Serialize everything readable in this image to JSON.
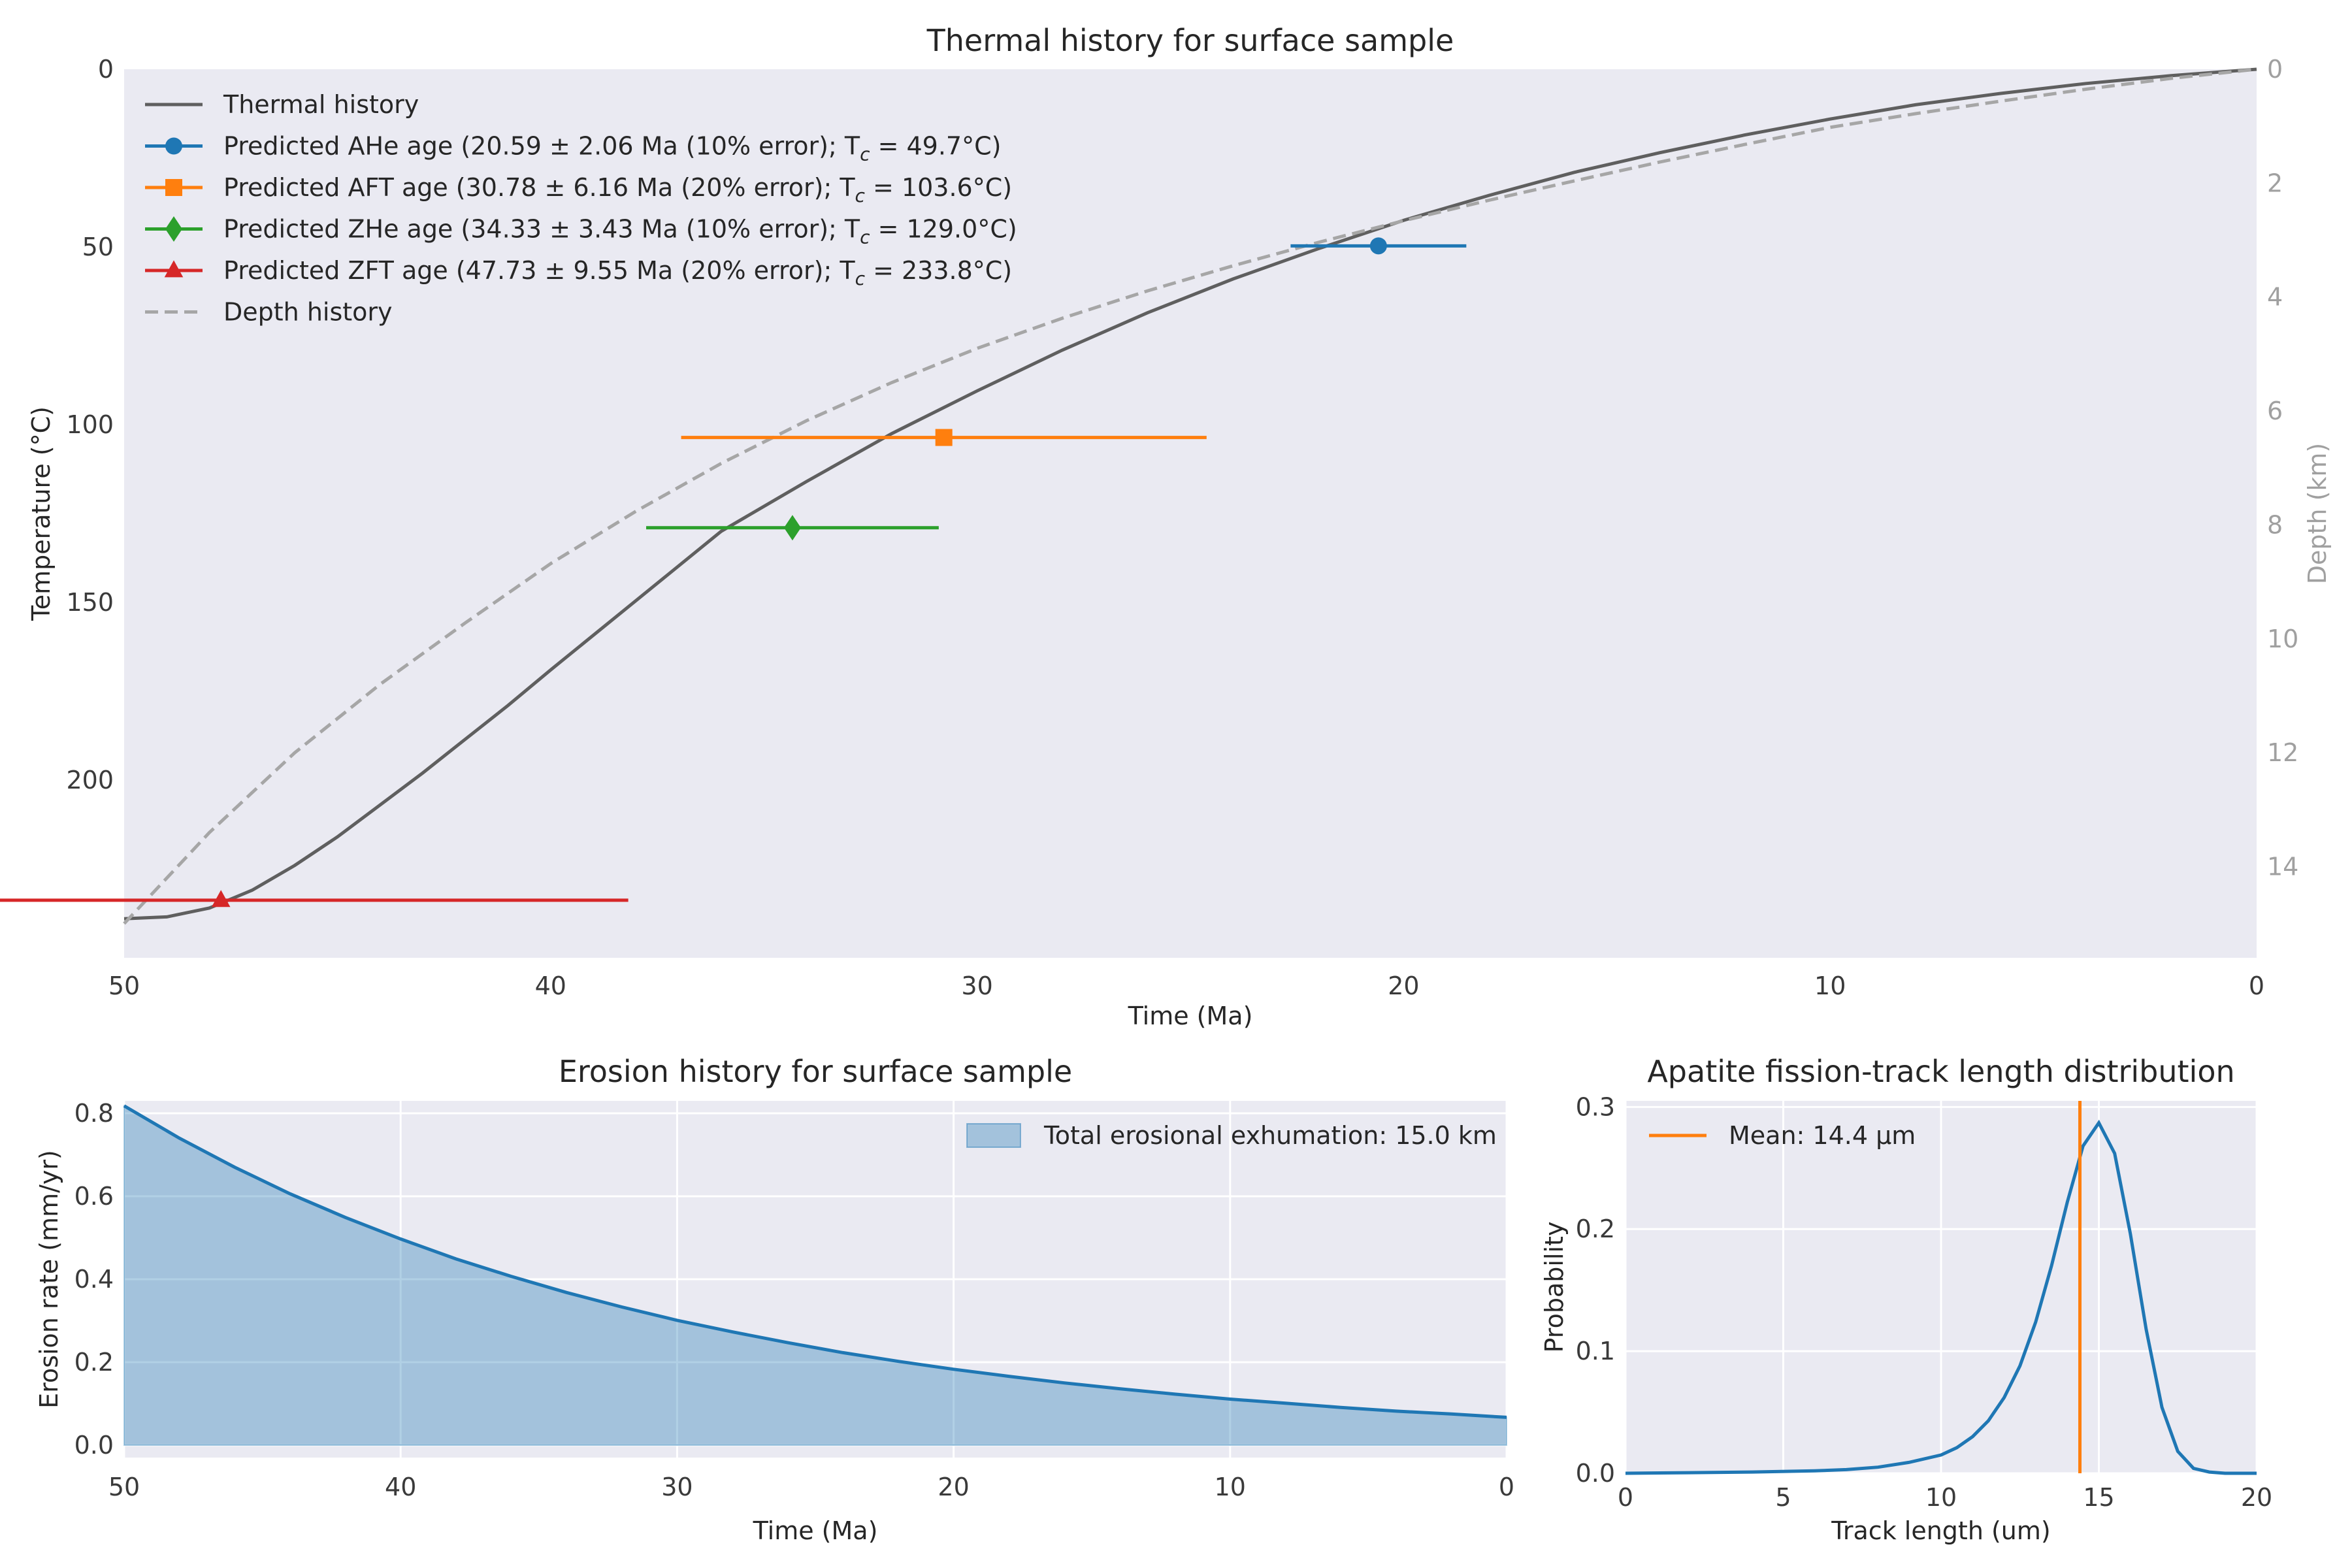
{
  "chart_data": [
    {
      "type": "line",
      "title": "Thermal history for surface sample",
      "xlabel": "Time (Ma)",
      "ylabel": "Temperature (°C)",
      "y2label": "Depth (km)",
      "xlim": [
        50,
        0
      ],
      "ylim": [
        250,
        0
      ],
      "y2lim": [
        15.6,
        0
      ],
      "x_ticks": [
        50,
        40,
        30,
        20,
        10,
        0
      ],
      "y_ticks": [
        0,
        50,
        100,
        150,
        200
      ],
      "y2_ticks": [
        0,
        2,
        4,
        6,
        8,
        10,
        12,
        14
      ],
      "grid": false,
      "legend_position": "top-left",
      "series": [
        {
          "name": "Thermal history",
          "color": "#5f5f5f",
          "style": "solid",
          "x": [
            50,
            49,
            48,
            47,
            46,
            45,
            44,
            43,
            42,
            41,
            40,
            38,
            36,
            34,
            32,
            30,
            28,
            26,
            24,
            22,
            20,
            18,
            16,
            14,
            12,
            10,
            8,
            6,
            4,
            2,
            0
          ],
          "y": [
            239,
            238.5,
            236,
            231,
            224,
            216,
            207,
            198,
            188.5,
            179,
            169,
            149.5,
            130,
            116,
            102.5,
            90.5,
            79,
            68.5,
            59,
            50.5,
            42.5,
            35.5,
            29,
            23.5,
            18.5,
            14,
            10,
            6.8,
            4,
            1.8,
            0
          ]
        },
        {
          "name": "Depth history",
          "color": "#a6a6a6",
          "style": "dashed",
          "x": [
            50,
            48,
            46,
            44,
            42,
            40,
            38,
            36,
            34,
            32,
            30,
            28,
            26,
            24,
            22,
            20,
            18,
            16,
            14,
            12,
            10,
            8,
            6,
            4,
            2,
            0
          ],
          "y": [
            15.0,
            13.4,
            12.0,
            10.8,
            9.72,
            8.68,
            7.76,
            6.92,
            6.17,
            5.5,
            4.9,
            4.37,
            3.89,
            3.45,
            3.04,
            2.66,
            2.3,
            1.96,
            1.63,
            1.32,
            1.02,
            0.78,
            0.56,
            0.35,
            0.16,
            0
          ]
        }
      ],
      "points": [
        {
          "name": "Predicted AHe age (20.59 ± 2.06 Ma (10% error); T",
          "tc": "c",
          "name_suffix": " = 49.7°C)",
          "age": 20.59,
          "error": 2.06,
          "temperature": 49.7,
          "color": "#1f77b4",
          "marker": "circle"
        },
        {
          "name": "Predicted AFT age (30.78 ± 6.16 Ma (20% error); T",
          "tc": "c",
          "name_suffix": " = 103.6°C)",
          "age": 30.78,
          "error": 6.16,
          "temperature": 103.6,
          "color": "#ff7f0e",
          "marker": "square"
        },
        {
          "name": "Predicted ZHe age (34.33 ± 3.43 Ma (10% error); T",
          "tc": "c",
          "name_suffix": " = 129.0°C)",
          "age": 34.33,
          "error": 3.43,
          "temperature": 129.0,
          "color": "#2ca02c",
          "marker": "diamond"
        },
        {
          "name": "Predicted ZFT age (47.73 ± 9.55 Ma (20% error); T",
          "tc": "c",
          "name_suffix": " = 233.8°C)",
          "age": 47.73,
          "error": 9.55,
          "temperature": 233.8,
          "color": "#d62728",
          "marker": "triangle"
        }
      ]
    },
    {
      "type": "area",
      "title": "Erosion history for surface sample",
      "xlabel": "Time (Ma)",
      "ylabel": "Erosion rate (mm/yr)",
      "xlim": [
        50,
        0
      ],
      "ylim": [
        -0.03,
        0.83
      ],
      "x_ticks": [
        50,
        40,
        30,
        20,
        10,
        0
      ],
      "y_ticks": [
        0.0,
        0.2,
        0.4,
        0.6,
        0.8
      ],
      "y_tick_labels": [
        "0.0",
        "0.2",
        "0.4",
        "0.6",
        "0.8"
      ],
      "grid": true,
      "legend_position": "top-right",
      "series": [
        {
          "name": "Total erosional exhumation: 15.0 km",
          "color": "#1f77b4",
          "x": [
            50,
            48,
            46,
            44,
            42,
            40,
            38,
            36,
            34,
            32,
            30,
            28,
            26,
            24,
            22,
            20,
            18,
            16,
            14,
            12,
            10,
            8,
            6,
            4,
            2,
            0
          ],
          "y": [
            0.818,
            0.74,
            0.67,
            0.606,
            0.549,
            0.497,
            0.449,
            0.407,
            0.368,
            0.333,
            0.301,
            0.273,
            0.247,
            0.223,
            0.202,
            0.183,
            0.166,
            0.15,
            0.136,
            0.123,
            0.111,
            0.101,
            0.091,
            0.082,
            0.075,
            0.067
          ]
        }
      ]
    },
    {
      "type": "line",
      "title": "Apatite fission-track length distribution",
      "xlabel": "Track length (um)",
      "ylabel": "Probability",
      "xlim": [
        0,
        20
      ],
      "ylim": [
        0,
        0.305
      ],
      "x_ticks": [
        0,
        5,
        10,
        15,
        20
      ],
      "y_ticks": [
        0.0,
        0.1,
        0.2,
        0.3
      ],
      "y_tick_labels": [
        "0.0",
        "0.1",
        "0.2",
        "0.3"
      ],
      "grid": true,
      "legend_position": "top-left",
      "series": [
        {
          "name": "",
          "color": "#1f77b4",
          "x": [
            0,
            2,
            4,
            6,
            7,
            8,
            9,
            10,
            10.5,
            11,
            11.5,
            12,
            12.5,
            13,
            13.5,
            14,
            14.5,
            15,
            15.5,
            16,
            16.5,
            17,
            17.5,
            18,
            18.5,
            19,
            20
          ],
          "y": [
            0,
            0.0005,
            0.001,
            0.002,
            0.003,
            0.005,
            0.009,
            0.015,
            0.021,
            0.03,
            0.043,
            0.062,
            0.088,
            0.124,
            0.17,
            0.222,
            0.268,
            0.287,
            0.262,
            0.196,
            0.118,
            0.054,
            0.018,
            0.004,
            0.001,
            0,
            0
          ]
        }
      ],
      "mean_line": {
        "label": "Mean: 14.4 μm",
        "value": 14.4,
        "color": "#ff7f0e"
      }
    }
  ]
}
